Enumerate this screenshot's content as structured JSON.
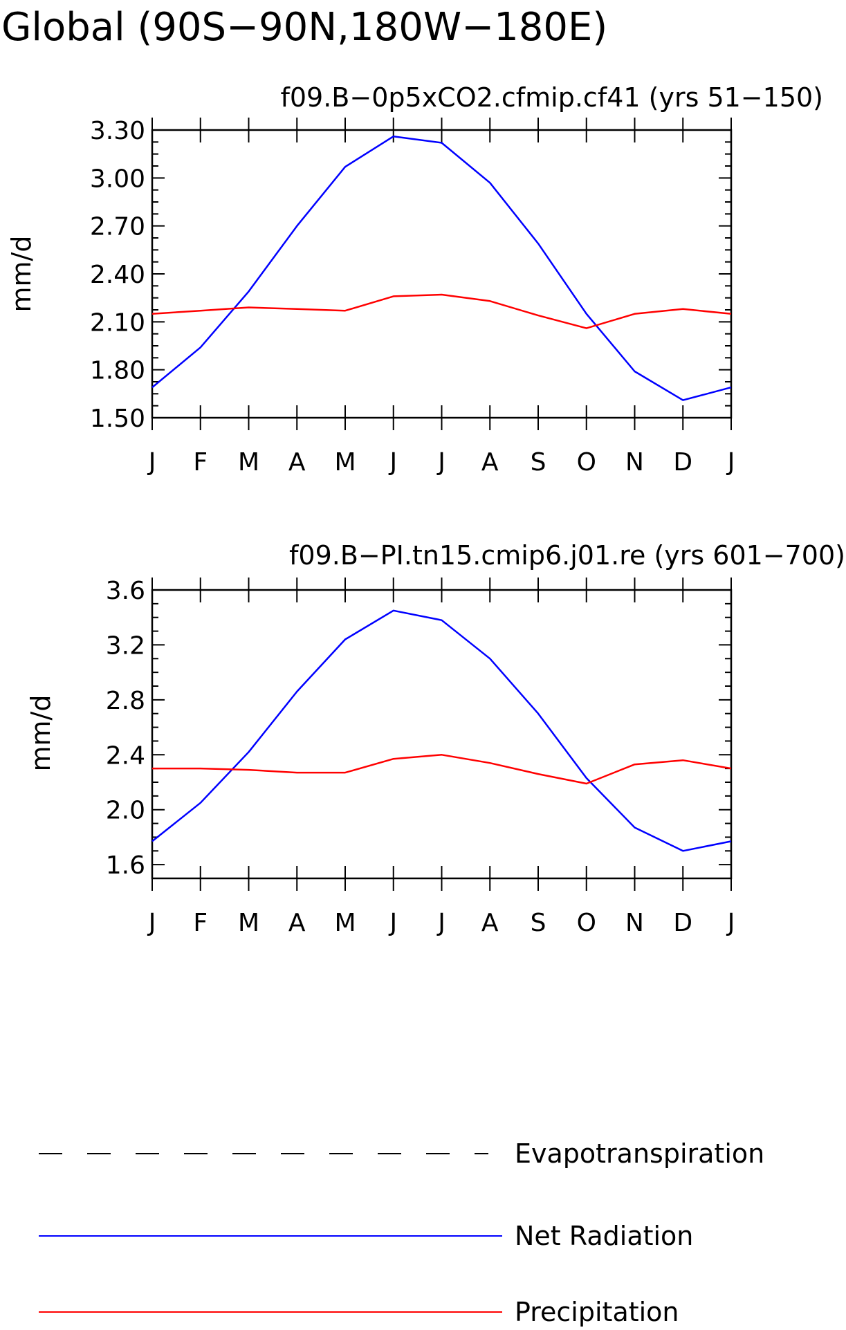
{
  "page_title": "Global (90S−90N,180W−180E)",
  "colors": {
    "net_radiation": "#0000ff",
    "precipitation": "#ff0000",
    "evapotranspiration": "#000000",
    "axes": "#000000",
    "background": "#ffffff"
  },
  "chart_data": [
    {
      "type": "line",
      "title": "f09.B−0p5xCO2.cfmip.cf41 (yrs 51−150)",
      "ylabel": "mm/d",
      "xlabel": "",
      "categories": [
        "J",
        "F",
        "M",
        "A",
        "M",
        "J",
        "J",
        "A",
        "S",
        "O",
        "N",
        "D",
        "J"
      ],
      "ylim": [
        1.5,
        3.3
      ],
      "yticks": [
        1.5,
        1.8,
        2.1,
        2.4,
        2.7,
        3.0,
        3.3
      ],
      "ytick_labels": [
        "1.50",
        "1.80",
        "2.10",
        "2.40",
        "2.70",
        "3.00",
        "3.30"
      ],
      "minor_per_major": 3,
      "grid": false,
      "series": [
        {
          "name": "Net Radiation",
          "color": "#0000ff",
          "values": [
            1.69,
            1.94,
            2.29,
            2.7,
            3.07,
            3.26,
            3.22,
            2.97,
            2.59,
            2.15,
            1.79,
            1.61,
            1.69
          ]
        },
        {
          "name": "Precipitation",
          "color": "#ff0000",
          "values": [
            2.15,
            2.17,
            2.19,
            2.18,
            2.17,
            2.26,
            2.27,
            2.23,
            2.14,
            2.06,
            2.15,
            2.18,
            2.15
          ]
        }
      ]
    },
    {
      "type": "line",
      "title": "f09.B−PI.tn15.cmip6.j01.re (yrs 601−700)",
      "ylabel": "mm/d",
      "xlabel": "",
      "categories": [
        "J",
        "F",
        "M",
        "A",
        "M",
        "J",
        "J",
        "A",
        "S",
        "O",
        "N",
        "D",
        "J"
      ],
      "ylim": [
        1.5,
        3.6
      ],
      "yticks": [
        1.6,
        2.0,
        2.4,
        2.8,
        3.2,
        3.6
      ],
      "ytick_labels": [
        "1.6",
        "2.0",
        "2.4",
        "2.8",
        "3.2",
        "3.6"
      ],
      "minor_per_major": 3,
      "grid": false,
      "series": [
        {
          "name": "Net Radiation",
          "color": "#0000ff",
          "values": [
            1.77,
            2.05,
            2.42,
            2.86,
            3.24,
            3.45,
            3.38,
            3.1,
            2.7,
            2.23,
            1.87,
            1.7,
            1.77
          ]
        },
        {
          "name": "Precipitation",
          "color": "#ff0000",
          "values": [
            2.3,
            2.3,
            2.29,
            2.27,
            2.27,
            2.37,
            2.4,
            2.34,
            2.26,
            2.19,
            2.33,
            2.36,
            2.3
          ]
        }
      ]
    }
  ],
  "legend": {
    "placement": "bottom",
    "items": [
      {
        "label": "Evapotranspiration",
        "color": "#000000",
        "dash": true
      },
      {
        "label": "Net Radiation",
        "color": "#0000ff",
        "dash": false
      },
      {
        "label": "Precipitation",
        "color": "#ff0000",
        "dash": false
      }
    ]
  }
}
